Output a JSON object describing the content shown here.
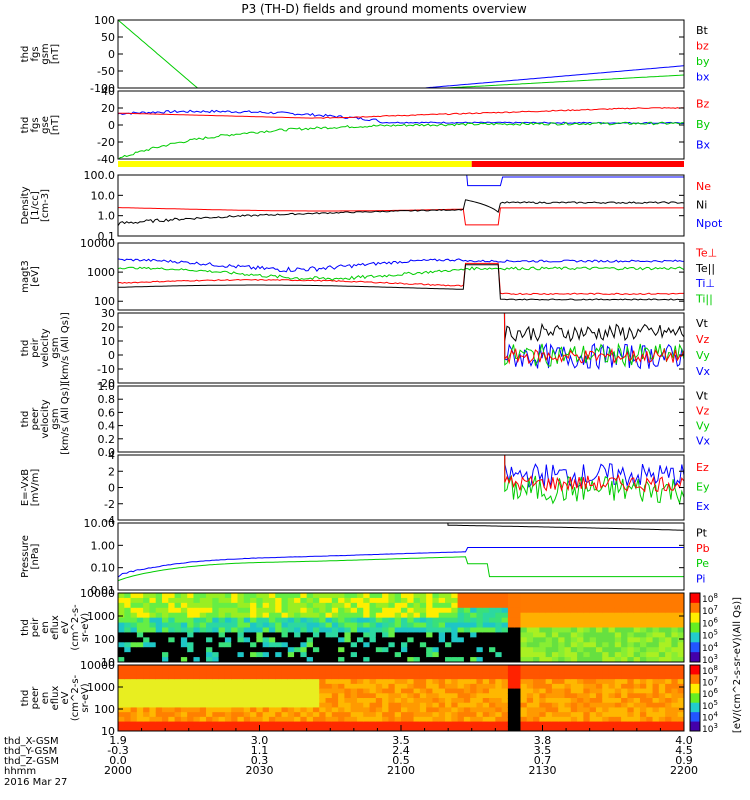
{
  "chart_data": {
    "type": "line",
    "title": "P3 (TH-D) fields and ground moments overview",
    "time_axis": {
      "labels": [
        {
          "t": 2000,
          "label": "2000"
        },
        {
          "t": 2030,
          "label": "2030"
        },
        {
          "t": 2100,
          "label": "2100"
        },
        {
          "t": 2130,
          "label": "2130"
        },
        {
          "t": 2200,
          "label": "2200"
        }
      ],
      "aux_rows": [
        {
          "name": "thd_X-GSM",
          "values": [
            "1.9",
            "3.0",
            "3.5",
            "3.8",
            "4.0"
          ]
        },
        {
          "name": "thd_Y-GSM",
          "values": [
            "-0.3",
            "1.1",
            "2.4",
            "3.5",
            "4.5"
          ]
        },
        {
          "name": "thd_Z-GSM",
          "values": [
            "0.0",
            "0.3",
            "0.5",
            "0.7",
            "0.9"
          ]
        },
        {
          "name": "hhmm",
          "values": [
            "2000",
            "2030",
            "2100",
            "2130",
            "2200"
          ]
        }
      ],
      "date": "2016 Mar 27"
    },
    "panels": [
      {
        "id": "fgs_gsm",
        "ylabel": [
          "thd",
          "fgs",
          "gsm",
          "[nT]"
        ],
        "ylim": [
          -100,
          100
        ],
        "ticks": [
          -100,
          -50,
          0,
          50,
          100
        ],
        "legend": [
          {
            "name": "Bt",
            "color": "#000000"
          },
          {
            "name": "bz",
            "color": "#ff0000"
          },
          {
            "name": "by",
            "color": "#00cc00"
          },
          {
            "name": "bx",
            "color": "#0000ff"
          }
        ]
      },
      {
        "id": "fgs_gse",
        "ylabel": [
          "thd",
          "fgs",
          "gse",
          "[nT]"
        ],
        "ylim": [
          -40,
          40
        ],
        "ticks": [
          -40,
          -20,
          0,
          20,
          40
        ],
        "legend": [
          {
            "name": "Bz",
            "color": "#ff0000"
          },
          {
            "name": "By",
            "color": "#00cc00"
          },
          {
            "name": "Bx",
            "color": "#0000ff"
          }
        ]
      },
      {
        "id": "density",
        "ylabel": [
          "Density",
          "[1/cc]",
          "[cm-3]"
        ],
        "log": true,
        "ylim": [
          0.1,
          100
        ],
        "ticks": [
          "0.1",
          "1.0",
          "10.0",
          "100.0"
        ],
        "legend": [
          {
            "name": "Ne",
            "color": "#ff0000"
          },
          {
            "name": "Ni",
            "color": "#000000"
          },
          {
            "name": "Npot",
            "color": "#0000ff"
          }
        ]
      },
      {
        "id": "temp",
        "ylabel": [
          "magt3",
          "[eV]"
        ],
        "log": true,
        "ylim": [
          50,
          10000
        ],
        "ticks": [
          "100",
          "1000",
          "10000"
        ],
        "legend": [
          {
            "name": "Te⊥",
            "color": "#ff0000"
          },
          {
            "name": "Te||",
            "color": "#000000"
          },
          {
            "name": "Ti⊥",
            "color": "#0000ff"
          },
          {
            "name": "Ti||",
            "color": "#00cc00"
          }
        ]
      },
      {
        "id": "peir_vel",
        "ylabel": [
          "thd",
          "peir",
          "velocity",
          "gsm",
          "[km/s (All Qs)]"
        ],
        "ylim": [
          -20,
          30
        ],
        "ticks": [
          -20,
          -10,
          0,
          10,
          20,
          30
        ],
        "legend": [
          {
            "name": "Vt",
            "color": "#000000"
          },
          {
            "name": "Vz",
            "color": "#ff0000"
          },
          {
            "name": "Vy",
            "color": "#00cc00"
          },
          {
            "name": "Vx",
            "color": "#0000ff"
          }
        ]
      },
      {
        "id": "peer_vel",
        "ylabel": [
          "thd",
          "peer",
          "velocity",
          "gsm",
          "[km/s (All Qs)]"
        ],
        "ylim": [
          0,
          1
        ],
        "ticks": [
          "0.0",
          "0.2",
          "0.4",
          "0.6",
          "0.8",
          "1.0"
        ],
        "legend": [
          {
            "name": "Vt",
            "color": "#000000"
          },
          {
            "name": "Vz",
            "color": "#ff0000"
          },
          {
            "name": "Vy",
            "color": "#00cc00"
          },
          {
            "name": "Vx",
            "color": "#0000ff"
          }
        ]
      },
      {
        "id": "efield",
        "ylabel": [
          "E=-VxB",
          "[mV/m]"
        ],
        "ylim": [
          -4,
          4
        ],
        "ticks": [
          -4,
          -2,
          0,
          2,
          4
        ],
        "legend": [
          {
            "name": "Ez",
            "color": "#ff0000"
          },
          {
            "name": "Ey",
            "color": "#00cc00"
          },
          {
            "name": "Ex",
            "color": "#0000ff"
          }
        ]
      },
      {
        "id": "pressure",
        "ylabel": [
          "Pressure",
          "[nPa]"
        ],
        "log": true,
        "ylim": [
          0.01,
          10
        ],
        "ticks": [
          "0.01",
          "0.10",
          "1.00",
          "10.00"
        ],
        "legend": [
          {
            "name": "Pt",
            "color": "#000000"
          },
          {
            "name": "Pb",
            "color": "#ff0000"
          },
          {
            "name": "Pe",
            "color": "#00cc00"
          },
          {
            "name": "Pi",
            "color": "#0000ff"
          }
        ]
      },
      {
        "id": "peir_spec",
        "ylabel": [
          "thd",
          "peir",
          "en",
          "eflux",
          "eV",
          "(cm^2-s-",
          "sr-eV)"
        ],
        "log": true,
        "ylim": [
          10,
          10000
        ],
        "ticks": [
          "10",
          "100",
          "1000",
          "10000"
        ]
      },
      {
        "id": "peer_spec",
        "ylabel": [
          "thd",
          "peer",
          "en",
          "eflux",
          "eV",
          "(cm^2-s-",
          "sr-eV)"
        ],
        "log": true,
        "ylim": [
          10,
          10000
        ],
        "ticks": [
          "10",
          "100",
          "1000",
          "10000"
        ]
      }
    ],
    "colorbar": {
      "label": "[eV/(cm^2-s-sr-eV)(All Qs)]",
      "ticks": [
        "10^3",
        "10^4",
        "10^5",
        "10^6",
        "10^7",
        "10^8"
      ]
    },
    "mode_bar": [
      {
        "from": 2000,
        "to": 2115,
        "color": "#ffff00"
      },
      {
        "from": 2115,
        "to": 2200,
        "color": "#ff0000"
      }
    ]
  }
}
